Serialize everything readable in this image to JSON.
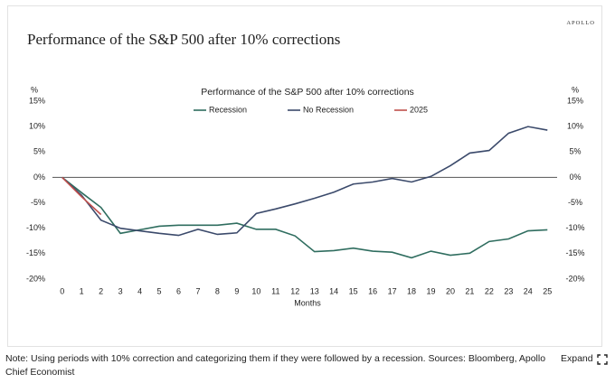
{
  "heading": "Performance of the S&P 500 after 10% corrections",
  "brand": "APOLLO",
  "note": "Note: Using periods with 10% correction and categorizing them if they were followed by a recession. Sources: Bloomberg, Apollo Chief Economist",
  "expand": "Expand",
  "chart_data": {
    "type": "line",
    "title": "Performance of the S&P 500 after 10% corrections",
    "xlabel": "Months",
    "y_unit_label": "%",
    "y2_unit_label": "%",
    "x": [
      0,
      1,
      2,
      3,
      4,
      5,
      6,
      7,
      8,
      9,
      10,
      11,
      12,
      13,
      14,
      15,
      16,
      17,
      18,
      19,
      20,
      21,
      22,
      23,
      24,
      25
    ],
    "xlim": [
      -0.5,
      25.5
    ],
    "xticks": [
      0,
      1,
      2,
      3,
      4,
      5,
      6,
      7,
      8,
      9,
      10,
      11,
      12,
      13,
      14,
      15,
      16,
      17,
      18,
      19,
      20,
      21,
      22,
      23,
      24,
      25
    ],
    "ylim": [
      -20,
      15
    ],
    "yticks": [
      {
        "value": 15,
        "label": "15%"
      },
      {
        "value": 10,
        "label": "10%"
      },
      {
        "value": 5,
        "label": "5%"
      },
      {
        "value": 0,
        "label": "0%"
      },
      {
        "value": -5,
        "label": "-5%"
      },
      {
        "value": -10,
        "label": "-10%"
      },
      {
        "value": -15,
        "label": "-15%"
      },
      {
        "value": -20,
        "label": "-20%"
      }
    ],
    "y2lim": [
      -20,
      15
    ],
    "y2ticks": [
      {
        "value": 15,
        "label": "15%"
      },
      {
        "value": 10,
        "label": "10%"
      },
      {
        "value": 5,
        "label": "5%"
      },
      {
        "value": 0,
        "label": "0%"
      },
      {
        "value": -5,
        "label": "-5%"
      },
      {
        "value": -10,
        "label": "-10%"
      },
      {
        "value": -15,
        "label": "-15%"
      },
      {
        "value": -20,
        "label": "-20%"
      }
    ],
    "zero_line": true,
    "legend": "top",
    "series": [
      {
        "name": "Recession",
        "color": "#2f6d5f",
        "values": [
          0,
          -3,
          -5.9,
          -11,
          -10.3,
          -9.6,
          -9.4,
          -9.4,
          -9.4,
          -9,
          -10.2,
          -10.2,
          -11.5,
          -14.6,
          -14.4,
          -13.9,
          -14.5,
          -14.7,
          -15.8,
          -14.5,
          -15.3,
          -14.9,
          -12.6,
          -12.1,
          -10.5,
          -10.3
        ]
      },
      {
        "name": "No Recession",
        "color": "#3b4a6b",
        "values": [
          0,
          -3.5,
          -8.4,
          -10,
          -10.5,
          -11,
          -11.4,
          -10.2,
          -11.2,
          -10.9,
          -7.1,
          -6.2,
          -5.2,
          -4.1,
          -2.9,
          -1.3,
          -0.9,
          -0.2,
          -0.9,
          0.2,
          2.3,
          4.8,
          5.3,
          8.7,
          10,
          9.3
        ]
      },
      {
        "name": "2025",
        "color": "#c0504d",
        "values": [
          0,
          -3.8,
          -7.3,
          null,
          null,
          null,
          null,
          null,
          null,
          null,
          null,
          null,
          null,
          null,
          null,
          null,
          null,
          null,
          null,
          null,
          null,
          null,
          null,
          null,
          null,
          null
        ]
      }
    ]
  }
}
